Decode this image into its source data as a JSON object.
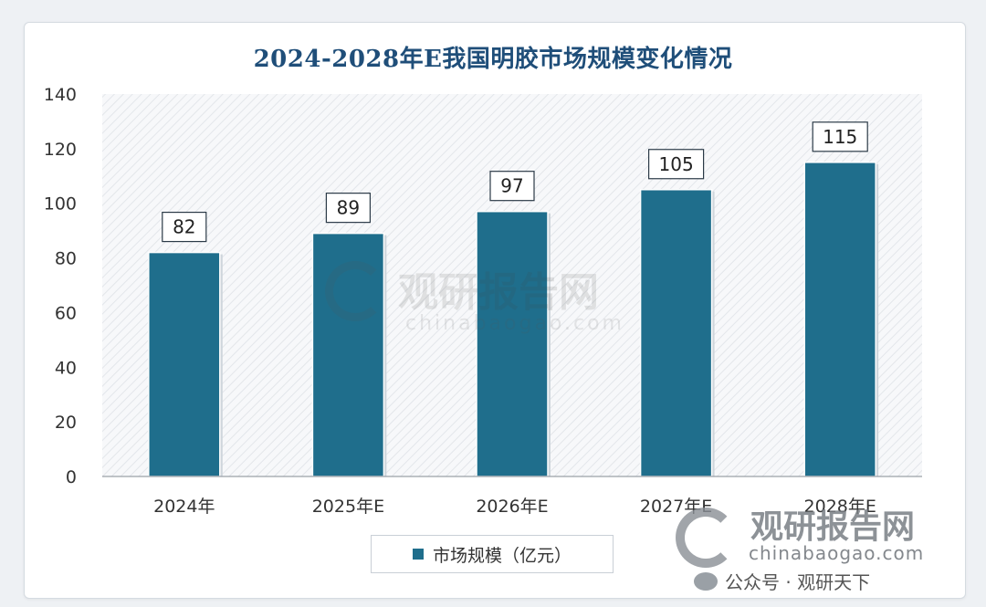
{
  "chart_data": {
    "type": "bar",
    "title": "2024-2028年E我国明胶市场规模变化情况",
    "categories": [
      "2024年",
      "2025年E",
      "2026年E",
      "2027年E",
      "2028年E"
    ],
    "series": [
      {
        "name": "市场规模（亿元）",
        "values": [
          82,
          89,
          97,
          105,
          115
        ]
      }
    ],
    "ylim": [
      0,
      140
    ],
    "yticks": [
      0,
      20,
      40,
      60,
      80,
      100,
      120,
      140
    ],
    "grid": false,
    "legend_position": "bottom-center",
    "bar_color": "#1f6e8c",
    "title_color": "#1f4e79",
    "data_labels": true
  },
  "watermark": {
    "name_cn": "观研报告网",
    "domain": "chinabaogao.com",
    "footer": "公众号 · 观研天下"
  }
}
